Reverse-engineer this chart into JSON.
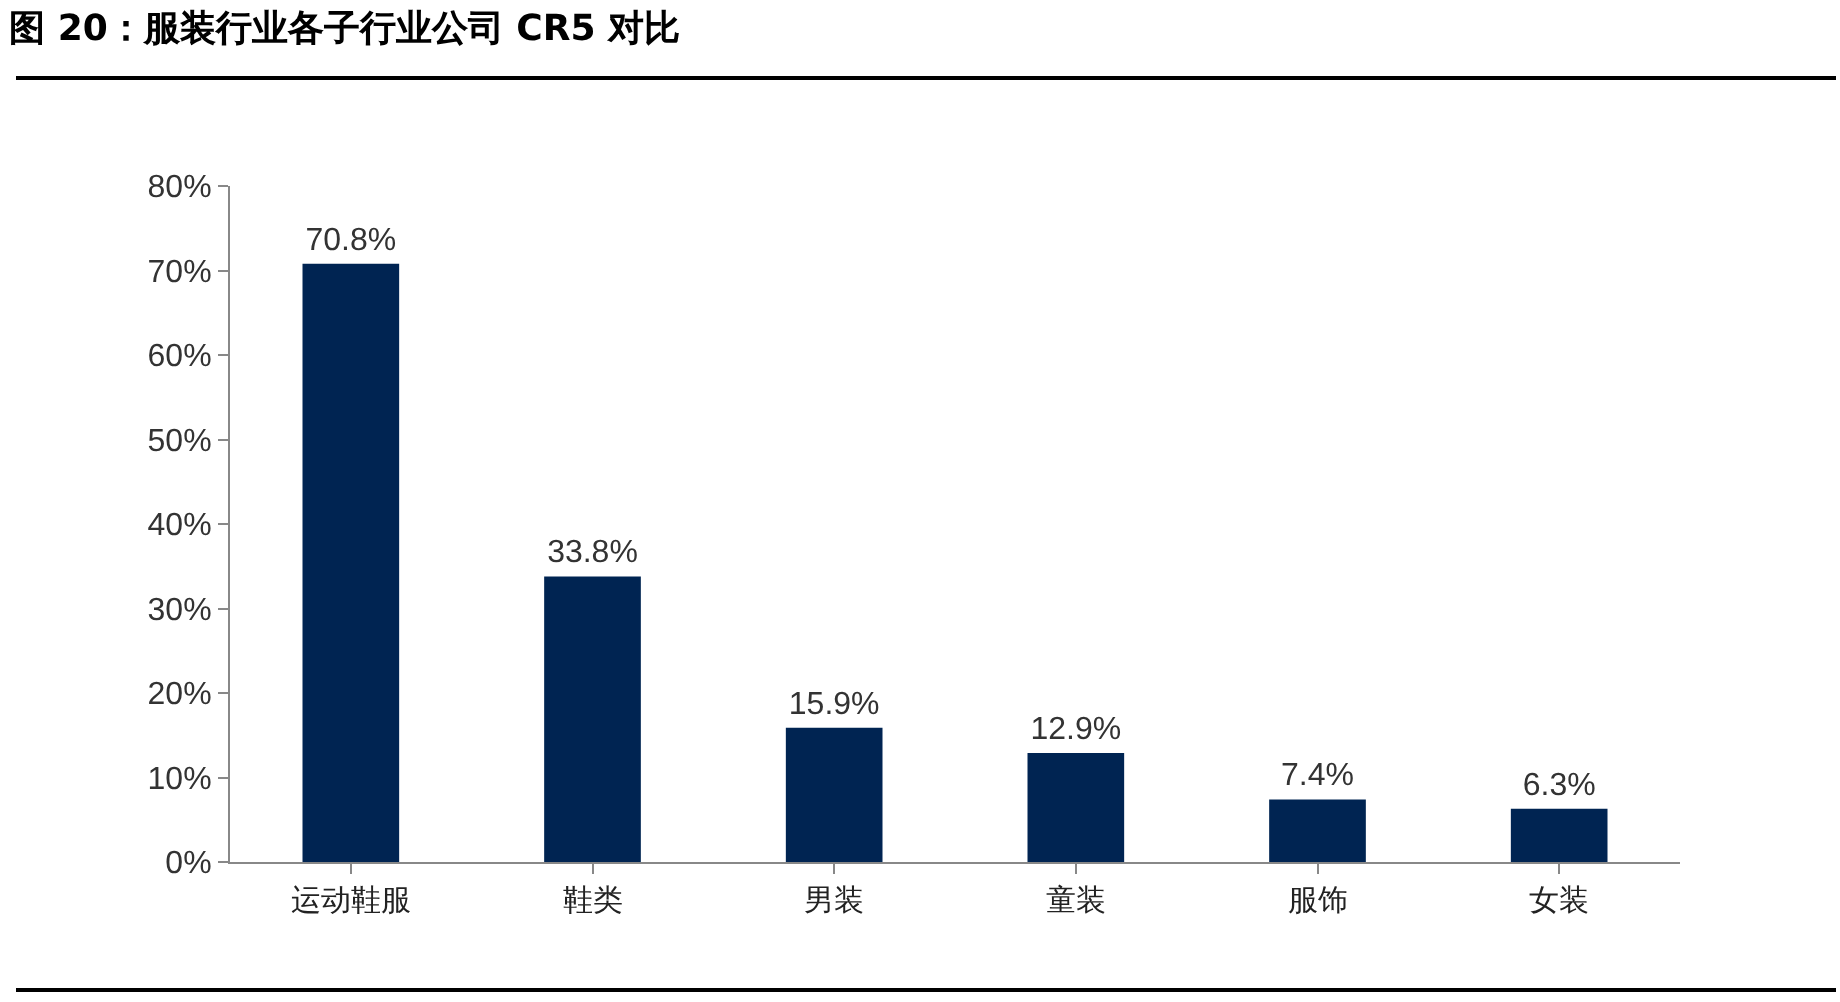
{
  "chart_data": {
    "type": "bar",
    "title": "图 20：服装行业各子行业公司 CR5 对比",
    "categories": [
      "运动鞋服",
      "鞋类",
      "男装",
      "童装",
      "服饰",
      "女装"
    ],
    "values": [
      70.8,
      33.8,
      15.9,
      12.9,
      7.4,
      6.3
    ],
    "value_labels": [
      "70.8%",
      "33.8%",
      "15.9%",
      "12.9%",
      "7.4%",
      "6.3%"
    ],
    "color": "#002452",
    "ylim": [
      0,
      80
    ],
    "yticks": [
      {
        "value": 0,
        "label": "0%"
      },
      {
        "value": 10,
        "label": "10%"
      },
      {
        "value": 20,
        "label": "20%"
      },
      {
        "value": 30,
        "label": "30%"
      },
      {
        "value": 40,
        "label": "40%"
      },
      {
        "value": 50,
        "label": "50%"
      },
      {
        "value": 60,
        "label": "60%"
      },
      {
        "value": 70,
        "label": "70%"
      },
      {
        "value": 80,
        "label": "80%"
      }
    ],
    "grid": false
  }
}
